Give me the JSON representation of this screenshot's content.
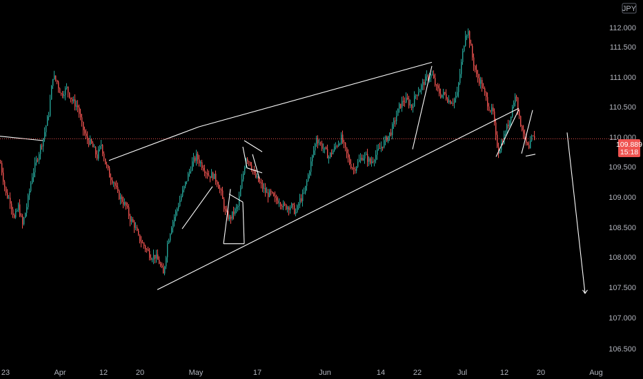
{
  "chart_data": {
    "type": "candlestick",
    "currency_badge": "JPY",
    "y_ticks": [
      "112.000",
      "111.500",
      "111.000",
      "110.500",
      "110.000",
      "109.500",
      "109.000",
      "108.500",
      "108.000",
      "107.500",
      "107.000",
      "106.500"
    ],
    "x_ticks": [
      "23",
      "Apr",
      "12",
      "20",
      "May",
      "17",
      "Jun",
      "14",
      "22",
      "Jul",
      "12",
      "20",
      "Aug"
    ],
    "ylim": [
      106.3,
      112.3
    ],
    "last_price": "109.889",
    "countdown": "15:18",
    "colors": {
      "up": "#26a69a",
      "down": "#ef5350",
      "drawing": "#ffffff",
      "axis_text": "#b2b5be",
      "price_line": "#ef5350"
    },
    "anchors": [
      [
        0,
        109.5
      ],
      [
        8,
        109.0
      ],
      [
        14,
        108.9
      ],
      [
        20,
        108.6
      ],
      [
        26,
        108.8
      ],
      [
        32,
        108.5
      ],
      [
        38,
        108.8
      ],
      [
        46,
        109.3
      ],
      [
        54,
        109.6
      ],
      [
        62,
        109.9
      ],
      [
        70,
        110.3
      ],
      [
        76,
        110.9
      ],
      [
        82,
        110.8
      ],
      [
        88,
        110.6
      ],
      [
        96,
        110.7
      ],
      [
        104,
        110.5
      ],
      [
        112,
        110.4
      ],
      [
        118,
        110.1
      ],
      [
        124,
        109.9
      ],
      [
        132,
        109.8
      ],
      [
        140,
        109.6
      ],
      [
        146,
        109.8
      ],
      [
        152,
        109.5
      ],
      [
        158,
        109.3
      ],
      [
        164,
        109.2
      ],
      [
        170,
        109.0
      ],
      [
        176,
        108.9
      ],
      [
        182,
        108.8
      ],
      [
        188,
        108.6
      ],
      [
        194,
        108.5
      ],
      [
        200,
        108.3
      ],
      [
        206,
        108.2
      ],
      [
        212,
        108.1
      ],
      [
        218,
        108.0
      ],
      [
        224,
        108.0
      ],
      [
        230,
        107.9
      ],
      [
        236,
        107.7
      ],
      [
        242,
        108.2
      ],
      [
        248,
        108.5
      ],
      [
        254,
        108.7
      ],
      [
        260,
        108.9
      ],
      [
        266,
        109.1
      ],
      [
        272,
        109.3
      ],
      [
        278,
        109.5
      ],
      [
        284,
        109.6
      ],
      [
        290,
        109.5
      ],
      [
        296,
        109.4
      ],
      [
        302,
        109.3
      ],
      [
        308,
        109.3
      ],
      [
        314,
        109.2
      ],
      [
        320,
        109.0
      ],
      [
        326,
        108.7
      ],
      [
        332,
        108.6
      ],
      [
        338,
        108.7
      ],
      [
        344,
        108.8
      ],
      [
        350,
        109.2
      ],
      [
        356,
        109.6
      ],
      [
        362,
        109.5
      ],
      [
        368,
        109.3
      ],
      [
        374,
        109.2
      ],
      [
        380,
        109.1
      ],
      [
        386,
        109.0
      ],
      [
        392,
        109.0
      ],
      [
        398,
        108.9
      ],
      [
        404,
        108.9
      ],
      [
        410,
        108.8
      ],
      [
        416,
        108.8
      ],
      [
        422,
        108.8
      ],
      [
        428,
        108.7
      ],
      [
        434,
        108.9
      ],
      [
        440,
        109.0
      ],
      [
        446,
        109.3
      ],
      [
        452,
        109.6
      ],
      [
        458,
        109.9
      ],
      [
        464,
        109.8
      ],
      [
        470,
        109.7
      ],
      [
        476,
        109.6
      ],
      [
        482,
        109.7
      ],
      [
        488,
        109.8
      ],
      [
        494,
        109.9
      ],
      [
        500,
        109.7
      ],
      [
        506,
        109.5
      ],
      [
        512,
        109.4
      ],
      [
        518,
        109.5
      ],
      [
        524,
        109.6
      ],
      [
        530,
        109.6
      ],
      [
        536,
        109.5
      ],
      [
        542,
        109.6
      ],
      [
        548,
        109.7
      ],
      [
        554,
        109.8
      ],
      [
        560,
        109.9
      ],
      [
        566,
        110.0
      ],
      [
        572,
        110.2
      ],
      [
        578,
        110.4
      ],
      [
        584,
        110.5
      ],
      [
        590,
        110.5
      ],
      [
        596,
        110.4
      ],
      [
        602,
        110.6
      ],
      [
        608,
        110.7
      ],
      [
        614,
        110.8
      ],
      [
        620,
        110.9
      ],
      [
        626,
        110.9
      ],
      [
        632,
        110.7
      ],
      [
        638,
        110.6
      ],
      [
        644,
        110.6
      ],
      [
        650,
        110.5
      ],
      [
        656,
        110.5
      ],
      [
        662,
        110.6
      ],
      [
        668,
        111.1
      ],
      [
        674,
        111.6
      ],
      [
        678,
        111.6
      ],
      [
        684,
        111.2
      ],
      [
        690,
        110.9
      ],
      [
        696,
        110.8
      ],
      [
        702,
        110.6
      ],
      [
        708,
        110.4
      ],
      [
        714,
        110.3
      ],
      [
        718,
        109.9
      ],
      [
        722,
        109.7
      ],
      [
        726,
        109.8
      ],
      [
        732,
        110.0
      ],
      [
        738,
        110.2
      ],
      [
        744,
        110.5
      ],
      [
        748,
        110.6
      ],
      [
        752,
        110.2
      ],
      [
        758,
        110.0
      ],
      [
        762,
        109.8
      ],
      [
        766,
        109.7
      ],
      [
        770,
        109.9
      ],
      [
        774,
        109.9
      ]
    ],
    "annotations": {
      "drawing_lines": [
        [
          0,
          109.93,
          62,
          109.86
        ],
        [
          158,
          109.54,
          288,
          110.08
        ],
        [
          288,
          110.08,
          626,
          111.12
        ],
        [
          228,
          107.46,
          752,
          110.38
        ],
        [
          264,
          108.44,
          308,
          109.12
        ],
        [
          332,
          109.0,
          352,
          108.87
        ],
        [
          352,
          108.87,
          354,
          108.2
        ],
        [
          354,
          108.2,
          324,
          108.2
        ],
        [
          324,
          108.2,
          334,
          109.08
        ],
        [
          352,
          109.76,
          358,
          109.42
        ],
        [
          358,
          109.42,
          380,
          109.34
        ],
        [
          354,
          109.86,
          380,
          109.68
        ],
        [
          366,
          109.64,
          376,
          109.25
        ],
        [
          598,
          109.72,
          626,
          111.06
        ],
        [
          719,
          109.6,
          752,
          110.36
        ],
        [
          756,
          109.65,
          772,
          110.35
        ],
        [
          762,
          109.61,
          776,
          109.64
        ],
        [
          822,
          109.99,
          848,
          107.4
        ]
      ],
      "drawing_arrowheads": [
        [
          848,
          107.4
        ]
      ]
    }
  }
}
